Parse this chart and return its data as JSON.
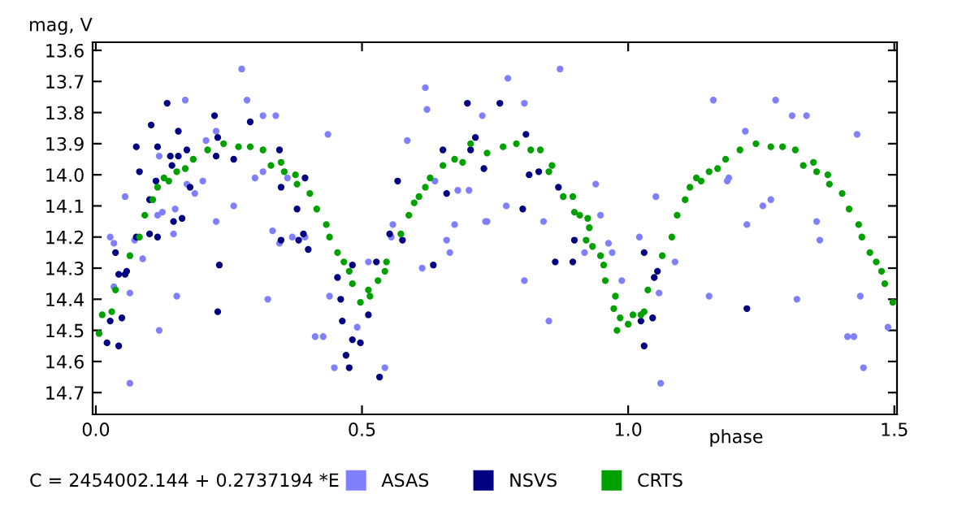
{
  "chart_data": {
    "type": "scatter",
    "xlabel": "phase",
    "ylabel": "mag, V",
    "annotations": [
      "C = 2454002.144 + 0.2737194 *E"
    ],
    "xlim": [
      -0.006,
      1.505
    ],
    "ylim": [
      14.77,
      13.574
    ],
    "xticks": [
      {
        "value": 0,
        "label": "0.0"
      },
      0.5,
      {
        "value": 1,
        "label": "1.0"
      },
      1.5
    ],
    "yticks": [
      13.6,
      13.7,
      13.8,
      13.9,
      {
        "value": 14,
        "label": "14.0"
      },
      14.1,
      14.2,
      14.3,
      14.4,
      14.5,
      14.6,
      14.7
    ],
    "marker": "circle",
    "legend": "bottom",
    "grid": false,
    "series": [
      {
        "name": "ASAS",
        "color": "#8080ff",
        "x": [
          0.027,
          0.034,
          0.034,
          0.064,
          0.055,
          0.073,
          0.088,
          0.064,
          0.119,
          0.119,
          0.116,
          0.125,
          0.146,
          0.149,
          0.152,
          0.168,
          0.171,
          0.186,
          0.201,
          0.207,
          0.226,
          0.226,
          0.259,
          0.284,
          0.274,
          0.299,
          0.314,
          0.314,
          0.323,
          0.338,
          0.332,
          0.345,
          0.36,
          0.369,
          0.393,
          0.412,
          0.427,
          0.436,
          0.439,
          0.448,
          0.491,
          0.512,
          0.543,
          0.555,
          0.558,
          0.585,
          0.619,
          0.622,
          0.613,
          0.637,
          0.659,
          0.665,
          0.674,
          0.68,
          0.701,
          0.726,
          0.732,
          0.872,
          0.774,
          0.805,
          0.735,
          0.771,
          0.805,
          0.851,
          0.841,
          0.939,
          0.948,
          0.963,
          0.97,
          0.918,
          0.988,
          1.021,
          1.058,
          1.052,
          1.088,
          1.061,
          1.152,
          1.16,
          1.22,
          1.223,
          1.253,
          1.268,
          1.277,
          1.308,
          1.317,
          1.335,
          1.354,
          1.36,
          1.43,
          1.436,
          1.412,
          1.424,
          1.442,
          1.488,
          1.186,
          1.189
        ],
        "values": [
          14.2,
          14.22,
          14.36,
          14.38,
          14.07,
          14.21,
          14.27,
          14.67,
          14.5,
          13.94,
          14.13,
          14.12,
          14.19,
          14.11,
          14.39,
          13.76,
          14.03,
          14.06,
          14.02,
          13.89,
          13.86,
          14.15,
          14.1,
          13.76,
          13.66,
          14.01,
          13.99,
          13.81,
          14.4,
          13.81,
          14.18,
          14.22,
          14.01,
          14.2,
          14.2,
          14.52,
          14.52,
          13.87,
          14.39,
          14.62,
          14.49,
          14.28,
          14.62,
          14.2,
          14.16,
          13.89,
          13.72,
          13.79,
          14.3,
          14.02,
          14.21,
          14.25,
          14.16,
          14.05,
          14.05,
          13.81,
          14.15,
          13.66,
          13.69,
          13.77,
          14.15,
          14.1,
          14.34,
          14.47,
          14.15,
          14.03,
          14.13,
          14.22,
          14.25,
          14.25,
          14.34,
          14.2,
          14.38,
          14.07,
          14.28,
          14.67,
          14.39,
          13.76,
          13.86,
          14.16,
          14.1,
          14.08,
          13.76,
          13.81,
          14.4,
          13.81,
          14.15,
          14.21,
          13.87,
          14.39,
          14.52,
          14.52,
          14.62,
          14.49,
          14.02,
          14.01
        ]
      },
      {
        "name": "NSVS",
        "color": "#000080",
        "x": [
          0.037,
          0.043,
          0.055,
          0.058,
          0.076,
          0.076,
          0.082,
          0.104,
          0.116,
          0.113,
          0.101,
          0.14,
          0.155,
          0.155,
          0.143,
          0.146,
          0.162,
          0.171,
          0.177,
          0.223,
          0.226,
          0.229,
          0.259,
          0.345,
          0.348,
          0.378,
          0.381,
          0.393,
          0.39,
          0.399,
          0.454,
          0.46,
          0.482,
          0.527,
          0.704,
          0.698,
          0.652,
          0.659,
          0.713,
          0.729,
          0.759,
          0.808,
          0.814,
          0.802,
          0.832,
          0.869,
          0.899,
          1.03,
          1.049,
          1.055,
          0.021,
          0.043,
          0.049,
          0.027,
          0.101,
          0.116,
          0.134,
          0.229,
          0.232,
          0.29,
          0.348,
          0.463,
          0.47,
          0.482,
          0.497,
          0.476,
          0.512,
          0.533,
          0.552,
          0.567,
          0.576,
          0.634,
          0.863,
          0.896,
          1.024,
          1.03,
          1.046,
          1.223
        ],
        "values": [
          14.25,
          14.32,
          14.32,
          14.31,
          14.2,
          13.91,
          13.99,
          13.84,
          13.91,
          14.02,
          14.08,
          13.94,
          13.86,
          13.94,
          13.97,
          14.15,
          14.14,
          13.92,
          14.04,
          13.81,
          13.94,
          13.88,
          13.95,
          13.92,
          14.04,
          14.11,
          14.21,
          14.01,
          14.19,
          14.24,
          14.33,
          14.4,
          14.29,
          14.28,
          13.92,
          13.77,
          13.92,
          14.06,
          13.88,
          13.98,
          13.77,
          13.87,
          14.0,
          14.11,
          13.99,
          14.04,
          14.21,
          14.25,
          14.33,
          14.31,
          14.54,
          14.55,
          14.46,
          14.47,
          14.19,
          14.2,
          13.77,
          14.44,
          14.29,
          13.83,
          14.21,
          14.47,
          14.58,
          14.53,
          14.54,
          14.62,
          14.45,
          14.65,
          14.19,
          14.02,
          14.21,
          14.29,
          14.28,
          14.28,
          14.47,
          14.55,
          14.46,
          14.43
        ]
      },
      {
        "name": "CRTS",
        "color": "#00a000",
        "x": [
          0.006,
          0.012,
          0.03,
          0.037,
          0.064,
          0.082,
          0.092,
          0.107,
          0.116,
          0.128,
          0.137,
          0.152,
          0.168,
          0.183,
          0.21,
          0.24,
          0.268,
          0.29,
          0.314,
          0.329,
          0.348,
          0.354,
          0.375,
          0.378,
          0.402,
          0.415,
          0.433,
          0.439,
          0.454,
          0.466,
          0.476,
          0.482,
          0.497,
          0.512,
          0.515,
          0.53,
          0.543,
          0.546,
          0.573,
          0.588,
          0.598,
          0.607,
          0.619,
          0.628,
          0.652,
          0.674,
          0.689,
          0.704,
          0.735,
          0.765,
          0.79,
          0.817,
          0.835,
          0.851,
          0.857,
          0.878,
          0.896,
          0.899,
          0.909,
          0.921,
          0.924,
          0.927,
          0.933,
          0.948,
          0.954,
          0.957,
          0.973,
          0.976,
          0.979,
          0.985,
          1.0,
          1.009,
          1.024,
          1.03,
          1.037,
          1.064,
          1.082,
          1.092,
          1.107,
          1.116,
          1.128,
          1.137,
          1.152,
          1.168,
          1.183,
          1.21,
          1.24,
          1.268,
          1.29,
          1.314,
          1.329,
          1.348,
          1.354,
          1.375,
          1.378,
          1.402,
          1.415,
          1.433,
          1.439,
          1.454,
          1.466,
          1.476,
          1.482,
          1.497
        ],
        "values": [
          14.51,
          14.45,
          14.44,
          14.37,
          14.26,
          14.2,
          14.13,
          14.08,
          14.04,
          14.01,
          14.02,
          13.99,
          13.98,
          13.95,
          13.92,
          13.9,
          13.91,
          13.91,
          13.92,
          13.97,
          13.96,
          13.99,
          14.0,
          14.03,
          14.06,
          14.11,
          14.16,
          14.2,
          14.25,
          14.28,
          14.31,
          14.35,
          14.41,
          14.37,
          14.39,
          14.34,
          14.31,
          14.28,
          14.19,
          14.13,
          14.09,
          14.07,
          14.04,
          14.01,
          13.97,
          13.95,
          13.96,
          13.9,
          13.93,
          13.91,
          13.9,
          13.92,
          13.92,
          13.99,
          13.97,
          14.07,
          14.07,
          14.12,
          14.13,
          14.21,
          14.14,
          14.17,
          14.23,
          14.26,
          14.29,
          14.34,
          14.43,
          14.39,
          14.5,
          14.46,
          14.48,
          14.45,
          14.45,
          14.44,
          14.37,
          14.26,
          14.2,
          14.13,
          14.08,
          14.04,
          14.01,
          14.02,
          13.99,
          13.98,
          13.95,
          13.92,
          13.9,
          13.91,
          13.91,
          13.92,
          13.97,
          13.96,
          13.99,
          14.0,
          14.03,
          14.06,
          14.11,
          14.16,
          14.2,
          14.25,
          14.28,
          14.31,
          14.35,
          14.41
        ]
      }
    ]
  }
}
